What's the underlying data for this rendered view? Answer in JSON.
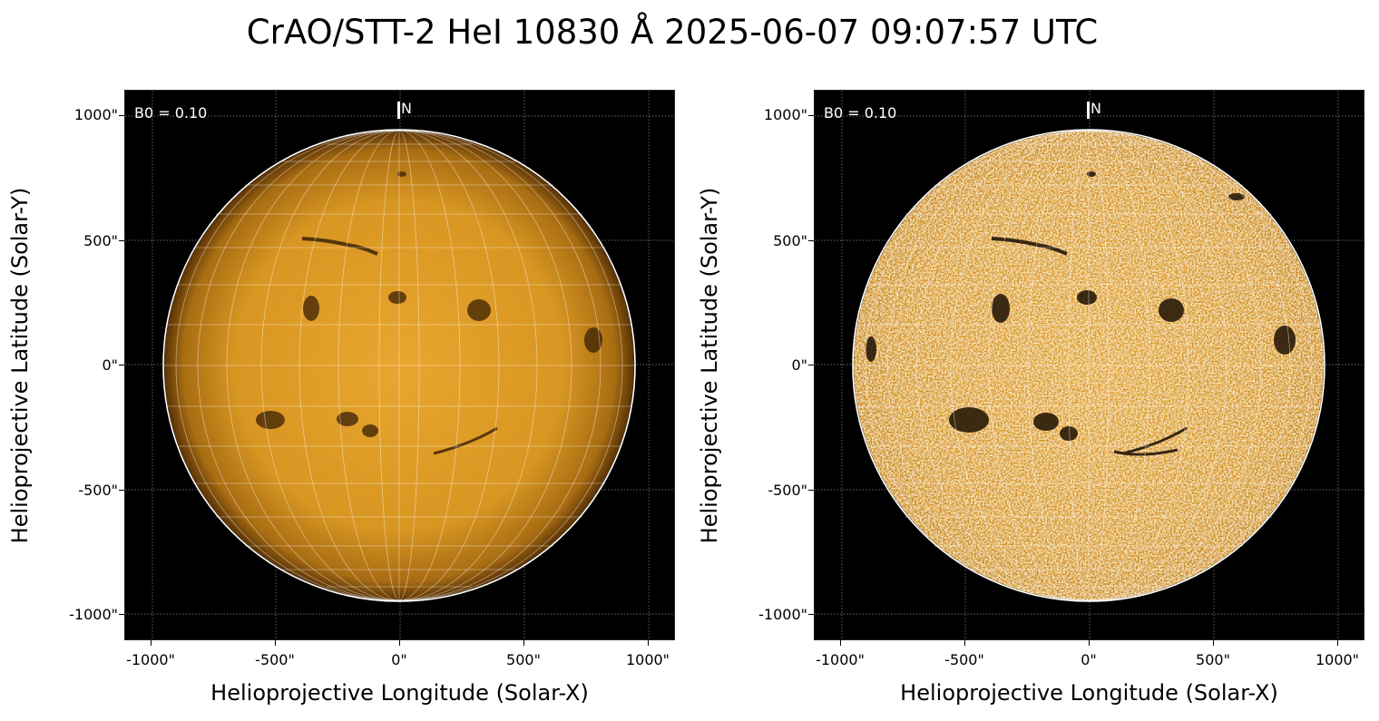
{
  "title": "CrAO/STT-2 HeI 10830 Å 2025-06-07 09:07:57 UTC",
  "colors": {
    "disk_light": "#e6a12a",
    "disk_dark": "#5a3305",
    "background": "#000000"
  },
  "panels": [
    {
      "b0_label": "B0 = 0.10",
      "north_label": "N",
      "x_label": "Helioprojective Longitude (Solar-X)",
      "y_label": "Helioprojective Latitude (Solar-Y)",
      "x_ticks": [
        "-1000\"",
        "-500\"",
        "0\"",
        "500\"",
        "1000\""
      ],
      "y_ticks": [
        "1000\"",
        "500\"",
        "0\"",
        "-500\"",
        "-1000\""
      ],
      "contrast": "normal"
    },
    {
      "b0_label": "B0 = 0.10",
      "north_label": "N",
      "x_label": "Helioprojective Longitude (Solar-X)",
      "y_label": "Helioprojective Latitude (Solar-Y)",
      "x_ticks": [
        "-1000\"",
        "-500\"",
        "0\"",
        "500\"",
        "1000\""
      ],
      "y_ticks": [
        "1000\"",
        "500\"",
        "0\"",
        "-500\"",
        "-1000\""
      ],
      "contrast": "enhanced"
    }
  ]
}
